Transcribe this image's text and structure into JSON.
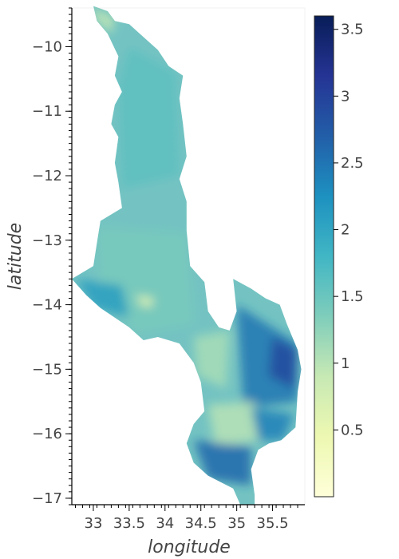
{
  "chart_data": {
    "type": "heatmap",
    "title": "",
    "xlabel": "longitude",
    "ylabel": "latitude",
    "xlim": [
      32.7,
      35.95
    ],
    "ylim": [
      -17.1,
      -9.4
    ],
    "x_ticks": [
      33,
      33.5,
      34,
      34.5,
      35,
      35.5
    ],
    "x_tick_labels": [
      "33",
      "33.5",
      "34",
      "34.5",
      "35",
      "35.5"
    ],
    "y_ticks": [
      -10,
      -11,
      -12,
      -13,
      -14,
      -15,
      -16,
      -17
    ],
    "y_tick_labels": [
      "−10",
      "−11",
      "−12",
      "−13",
      "−14",
      "−15",
      "−16",
      "−17"
    ],
    "colorbar": {
      "colormap": "YlGnBu",
      "range": [
        0,
        3.6
      ],
      "ticks": [
        0.5,
        1,
        1.5,
        2,
        2.5,
        3,
        3.5
      ],
      "tick_labels": [
        "0.5",
        "1",
        "1.5",
        "2",
        "2.5",
        "3",
        "3.5"
      ],
      "colors": [
        "#ffffd9",
        "#edf8b1",
        "#c7e9b4",
        "#7fcdbb",
        "#41b6c4",
        "#1d91c0",
        "#225ea8",
        "#253494",
        "#081d58"
      ]
    },
    "outline_lonlat": [
      [
        33.0,
        -9.37
      ],
      [
        33.2,
        -9.45
      ],
      [
        33.3,
        -9.6
      ],
      [
        33.5,
        -9.65
      ],
      [
        33.7,
        -9.85
      ],
      [
        33.9,
        -10.05
      ],
      [
        34.05,
        -10.3
      ],
      [
        34.25,
        -10.45
      ],
      [
        34.2,
        -10.8
      ],
      [
        34.25,
        -11.2
      ],
      [
        34.3,
        -11.7
      ],
      [
        34.2,
        -12.05
      ],
      [
        34.3,
        -12.4
      ],
      [
        34.3,
        -12.85
      ],
      [
        34.35,
        -13.4
      ],
      [
        34.55,
        -13.65
      ],
      [
        34.6,
        -14.1
      ],
      [
        34.75,
        -14.35
      ],
      [
        34.9,
        -14.4
      ],
      [
        35.0,
        -14.1
      ],
      [
        34.95,
        -13.6
      ],
      [
        35.2,
        -13.75
      ],
      [
        35.4,
        -13.9
      ],
      [
        35.6,
        -14.0
      ],
      [
        35.7,
        -14.3
      ],
      [
        35.85,
        -14.7
      ],
      [
        35.9,
        -15.0
      ],
      [
        35.85,
        -15.35
      ],
      [
        35.82,
        -15.9
      ],
      [
        35.62,
        -16.1
      ],
      [
        35.45,
        -16.15
      ],
      [
        35.3,
        -16.25
      ],
      [
        35.2,
        -16.55
      ],
      [
        35.25,
        -16.95
      ],
      [
        35.25,
        -17.1
      ],
      [
        35.05,
        -17.1
      ],
      [
        34.95,
        -16.85
      ],
      [
        34.6,
        -16.65
      ],
      [
        34.4,
        -16.45
      ],
      [
        34.3,
        -16.15
      ],
      [
        34.4,
        -15.85
      ],
      [
        34.55,
        -15.65
      ],
      [
        34.5,
        -15.2
      ],
      [
        34.4,
        -14.9
      ],
      [
        34.2,
        -14.6
      ],
      [
        33.9,
        -14.5
      ],
      [
        33.7,
        -14.55
      ],
      [
        33.5,
        -14.35
      ],
      [
        33.3,
        -14.2
      ],
      [
        33.1,
        -14.05
      ],
      [
        32.9,
        -13.85
      ],
      [
        32.7,
        -13.6
      ],
      [
        33.0,
        -13.4
      ],
      [
        33.05,
        -13.05
      ],
      [
        33.1,
        -12.7
      ],
      [
        33.4,
        -12.5
      ],
      [
        33.35,
        -12.1
      ],
      [
        33.3,
        -11.8
      ],
      [
        33.35,
        -11.4
      ],
      [
        33.25,
        -11.2
      ],
      [
        33.3,
        -10.9
      ],
      [
        33.4,
        -10.7
      ],
      [
        33.3,
        -10.45
      ],
      [
        33.35,
        -10.15
      ],
      [
        33.2,
        -9.8
      ],
      [
        33.05,
        -9.6
      ]
    ],
    "value_zones": [
      {
        "lonlat": [
          [
            33.5,
            -10.0
          ],
          [
            34.15,
            -10.4
          ],
          [
            34.2,
            -12.0
          ],
          [
            33.4,
            -12.2
          ],
          [
            33.35,
            -10.6
          ]
        ],
        "value": 1.6
      },
      {
        "lonlat": [
          [
            33.05,
            -12.8
          ],
          [
            34.3,
            -12.9
          ],
          [
            34.4,
            -14.3
          ],
          [
            33.6,
            -14.45
          ],
          [
            33.1,
            -13.9
          ]
        ],
        "value": 1.4
      },
      {
        "lonlat": [
          [
            32.75,
            -13.6
          ],
          [
            33.4,
            -13.7
          ],
          [
            33.5,
            -14.2
          ],
          [
            33.0,
            -14.05
          ]
        ],
        "value": 2.1
      },
      {
        "lonlat": [
          [
            33.0,
            -9.4
          ],
          [
            33.3,
            -9.55
          ],
          [
            33.25,
            -9.8
          ],
          [
            33.0,
            -9.55
          ]
        ],
        "value": 0.9
      },
      {
        "lonlat": [
          [
            34.4,
            -14.5
          ],
          [
            34.9,
            -14.4
          ],
          [
            34.85,
            -15.3
          ],
          [
            34.45,
            -15.1
          ]
        ],
        "value": 1.1
      },
      {
        "lonlat": [
          [
            35.0,
            -14.0
          ],
          [
            35.85,
            -14.6
          ],
          [
            35.85,
            -15.5
          ],
          [
            35.1,
            -15.6
          ]
        ],
        "value": 2.5
      },
      {
        "lonlat": [
          [
            35.5,
            -14.5
          ],
          [
            35.85,
            -14.7
          ],
          [
            35.8,
            -15.3
          ],
          [
            35.45,
            -15.1
          ]
        ],
        "value": 2.9
      },
      {
        "lonlat": [
          [
            34.6,
            -15.55
          ],
          [
            35.25,
            -15.5
          ],
          [
            35.3,
            -16.1
          ],
          [
            34.7,
            -16.2
          ]
        ],
        "value": 1.0
      },
      {
        "lonlat": [
          [
            34.4,
            -16.1
          ],
          [
            35.2,
            -16.2
          ],
          [
            35.2,
            -16.8
          ],
          [
            34.6,
            -16.7
          ]
        ],
        "value": 2.6
      },
      {
        "lonlat": [
          [
            35.2,
            -15.6
          ],
          [
            35.8,
            -15.7
          ],
          [
            35.65,
            -16.1
          ],
          [
            35.3,
            -16.1
          ]
        ],
        "value": 2.4
      },
      {
        "lonlat": [
          [
            33.6,
            -13.85
          ],
          [
            33.85,
            -13.9
          ],
          [
            33.8,
            -14.05
          ],
          [
            33.65,
            -14.0
          ]
        ],
        "value": 0.6
      }
    ]
  }
}
